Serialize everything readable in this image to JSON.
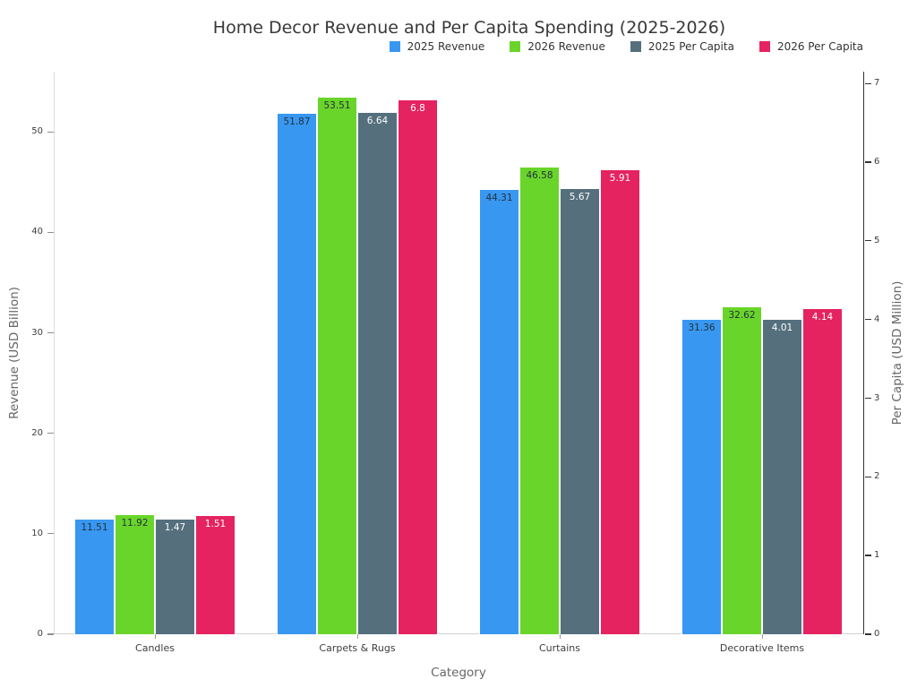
{
  "chart_data": {
    "type": "bar",
    "title": "Home Decor Revenue and Per Capita Spending (2025-2026)",
    "xlabel": "Category",
    "ylabel_left": "Revenue (USD Billion)",
    "ylabel_right": "Per Capita (USD Million)",
    "categories": [
      "Candles",
      "Carpets & Rugs",
      "Curtains",
      "Decorative Items"
    ],
    "series": [
      {
        "name": "2025 Revenue",
        "axis": "left",
        "color": "#3897f0",
        "label_color": "#24323e",
        "values": [
          11.51,
          51.87,
          44.31,
          31.36
        ]
      },
      {
        "name": "2026 Revenue",
        "axis": "left",
        "color": "#69d52a",
        "label_color": "#24323e",
        "values": [
          11.92,
          53.51,
          46.58,
          32.62
        ]
      },
      {
        "name": "2025 Per Capita",
        "axis": "right",
        "color": "#556f7d",
        "label_color": "#ffffff",
        "values": [
          1.47,
          6.64,
          5.67,
          4.01
        ]
      },
      {
        "name": "2026 Per Capita",
        "axis": "right",
        "color": "#e52361",
        "label_color": "#ffffff",
        "values": [
          1.51,
          6.8,
          5.91,
          4.14
        ]
      }
    ],
    "left_axis": {
      "ticks": [
        0,
        10,
        20,
        30,
        40,
        50
      ],
      "range": [
        0,
        56
      ]
    },
    "right_axis": {
      "ticks": [
        0,
        1,
        2,
        3,
        4,
        5,
        6,
        7
      ],
      "range": [
        0,
        7.15
      ]
    },
    "grid": false,
    "legend_position": "top-right",
    "background_color": "#ffffff"
  }
}
